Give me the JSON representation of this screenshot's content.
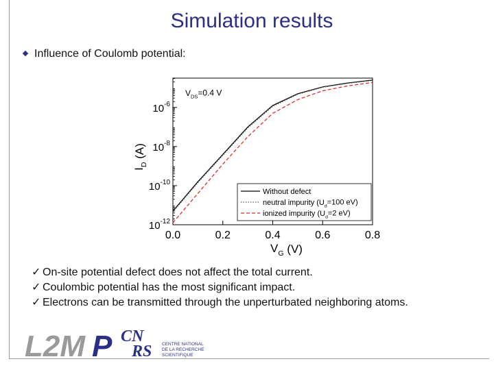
{
  "slide": {
    "title": "Simulation results",
    "bullet": "Influence of Coulomb potential:",
    "checks": [
      "On-site potential defect does not affect the total current.",
      "Coulombic potential has the most significant impact.",
      "Electrons can be transmitted through the unperturbated neighboring atoms."
    ],
    "tick_glyph": "✓"
  },
  "chart_data": {
    "type": "line",
    "annotation": "V_DS=0.4 V",
    "xlabel": "V_G (V)",
    "ylabel": "I_D (A)",
    "xlim": [
      0.0,
      0.8
    ],
    "ylim_log10": [
      -12,
      -4.5
    ],
    "log_y": true,
    "x_ticks": [
      "0.0",
      "0.2",
      "0.4",
      "0.6",
      "0.8"
    ],
    "y_ticks": [
      {
        "base": "10",
        "exp": "-6",
        "value": -6
      },
      {
        "base": "10",
        "exp": "-8",
        "value": -8
      },
      {
        "base": "10",
        "exp": "-10",
        "value": -10
      },
      {
        "base": "10",
        "exp": "-12",
        "value": -12
      }
    ],
    "legend_position": "bottom-right",
    "series": [
      {
        "name": "Without defect",
        "color": "#000000",
        "style": "solid",
        "x": [
          0.0,
          0.1,
          0.2,
          0.3,
          0.4,
          0.5,
          0.6,
          0.7,
          0.8
        ],
        "log10_y": [
          -11.3,
          -9.8,
          -8.4,
          -7.0,
          -5.9,
          -5.3,
          -4.95,
          -4.75,
          -4.6
        ]
      },
      {
        "name": "neutral impurity (U_d=100 eV)",
        "color": "#555555",
        "style": "dotted",
        "x": [
          0.0,
          0.1,
          0.2,
          0.3,
          0.4,
          0.5,
          0.6,
          0.7,
          0.8
        ],
        "log10_y": [
          -11.35,
          -9.85,
          -8.45,
          -7.05,
          -5.95,
          -5.33,
          -4.97,
          -4.77,
          -4.62
        ]
      },
      {
        "name": "ionized impurity (U_d=2 eV)",
        "color": "#e0201b",
        "style": "dashed",
        "x": [
          0.0,
          0.1,
          0.2,
          0.3,
          0.4,
          0.5,
          0.6,
          0.7,
          0.8
        ],
        "log10_y": [
          -11.9,
          -10.4,
          -8.9,
          -7.5,
          -6.3,
          -5.6,
          -5.15,
          -4.9,
          -4.72
        ]
      }
    ]
  },
  "logos": {
    "l2mp_a": "L2M",
    "l2mp_b": "P",
    "cnrs_top": "CN",
    "cnrs_bottom": "RS",
    "cnrs_text": [
      "CENTRE NATIONAL",
      "DE LA RECHERCHE",
      "SCIENTIFIQUE"
    ],
    "color_blue": "#2b2f86",
    "color_grey": "#9a9a9a"
  }
}
